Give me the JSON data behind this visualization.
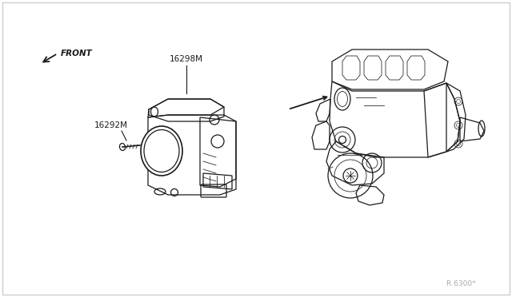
{
  "background_color": "#ffffff",
  "border_color": "#cccccc",
  "line_color": "#1a1a1a",
  "label_16292M": "16292M",
  "label_16298M": "16298M",
  "label_front": "FRONT",
  "label_ref": "R 6300*",
  "ref_color": "#aaaaaa",
  "lw_main": 0.9,
  "lw_thin": 0.55,
  "lw_thick": 1.3
}
